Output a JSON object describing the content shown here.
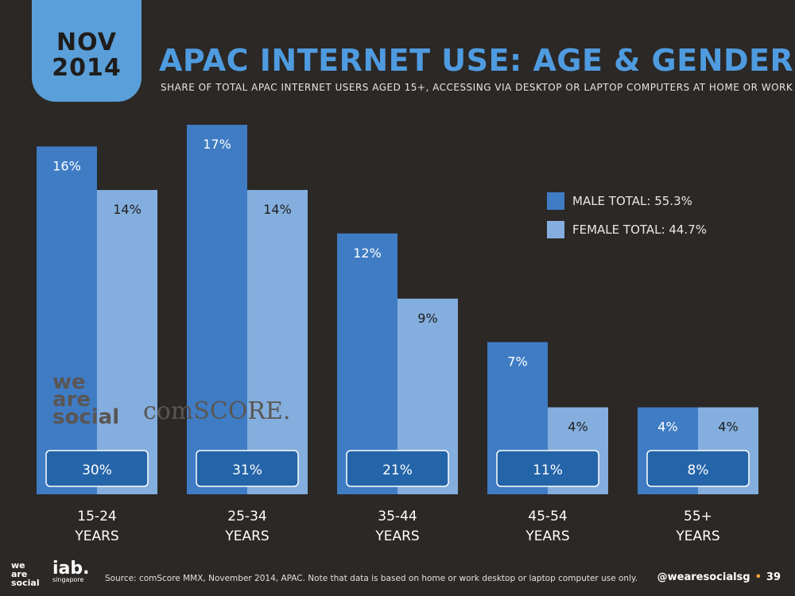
{
  "badge": {
    "month": "NOV",
    "year": "2014"
  },
  "header": {
    "title": "APAC INTERNET USE: AGE & GENDER",
    "subtitle": "SHARE OF TOTAL APAC INTERNET USERS AGED 15+, ACCESSING VIA DESKTOP OR LAPTOP COMPUTERS AT HOME OR WORK"
  },
  "watermarks": {
    "wearesocial": "we are social",
    "comscore": "comSCORE."
  },
  "legend": [
    {
      "label": "MALE TOTAL: 55.3%",
      "color": "#3f7cc4"
    },
    {
      "label": "FEMALE TOTAL: 44.7%",
      "color": "#84aedd"
    }
  ],
  "chart_data": {
    "type": "bar",
    "categories": [
      "15-24 YEARS",
      "25-34 YEARS",
      "35-44 YEARS",
      "45-54 YEARS",
      "55+ YEARS"
    ],
    "category_lines": [
      [
        "15-24",
        "YEARS"
      ],
      [
        "25-34",
        "YEARS"
      ],
      [
        "35-44",
        "YEARS"
      ],
      [
        "45-54",
        "YEARS"
      ],
      [
        "55+",
        "YEARS"
      ]
    ],
    "series": [
      {
        "name": "MALE TOTAL: 55.3%",
        "values": [
          16,
          17,
          12,
          7,
          4
        ],
        "labels": [
          "16%",
          "17%",
          "12%",
          "7%",
          "4%"
        ],
        "color": "#3f7cc4"
      },
      {
        "name": "FEMALE TOTAL: 44.7%",
        "values": [
          14,
          14,
          9,
          4,
          4
        ],
        "labels": [
          "14%",
          "14%",
          "9%",
          "4%",
          "4%"
        ],
        "color": "#84aedd"
      }
    ],
    "totals": [
      30,
      31,
      21,
      11,
      8
    ],
    "total_labels": [
      "30%",
      "31%",
      "21%",
      "11%",
      "8%"
    ],
    "ylim": [
      0,
      17
    ],
    "grid": false,
    "legend_position": "right"
  },
  "footer": {
    "logo": "we are social",
    "iab": "iab.",
    "iab_sub": "singapore",
    "source": "Source: comScore MMX, November 2014, APAC. Note that data is based on home or work desktop or laptop computer use only.",
    "handle": "@wearesocialsg",
    "page": "39"
  }
}
